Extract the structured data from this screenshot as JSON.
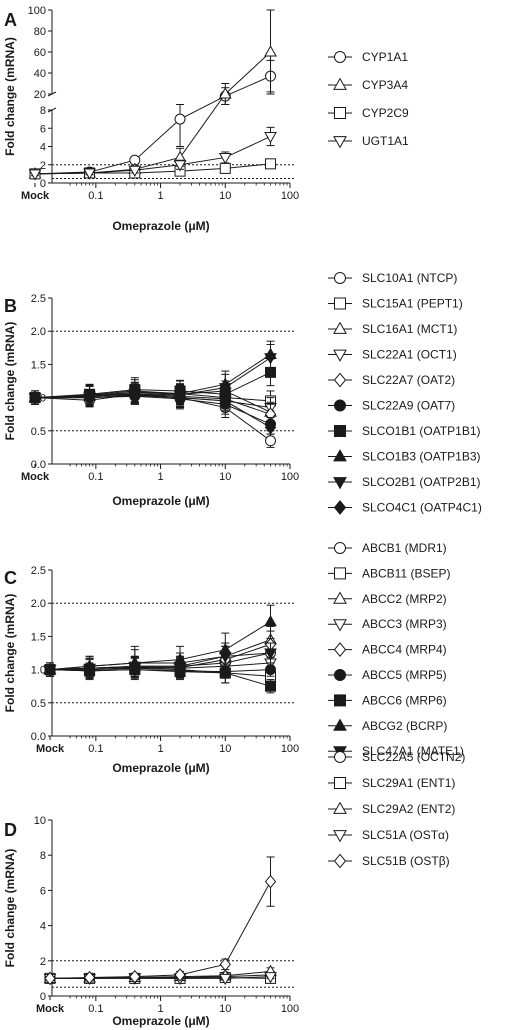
{
  "figure": {
    "panels": [
      {
        "letter": "A",
        "xlabel": "Omeprazole (μM)",
        "ylabel": "Fold change (mRNA)"
      },
      {
        "letter": "B",
        "xlabel": "Omeprazole (μM)",
        "ylabel": "Fold change (mRNA)"
      },
      {
        "letter": "C",
        "xlabel": "Omeprazole (μM)",
        "ylabel": "Fold change (mRNA)"
      },
      {
        "letter": "D",
        "xlabel": "Omeprazole (μM)",
        "ylabel": "Fold change (mRNA)"
      }
    ]
  },
  "chart_data": [
    {
      "type": "line",
      "panel": "A",
      "xlabel": "Omeprazole (μM)",
      "ylabel": "Fold change (mRNA)",
      "x_scale": "log",
      "x_tick_labels": [
        "Mock",
        "0.1",
        "1",
        "10",
        "100"
      ],
      "x": [
        "Mock",
        0.08,
        0.4,
        2,
        10,
        50
      ],
      "y_axis_broken": true,
      "y_lower_ticks": [
        0,
        2,
        4,
        6,
        8
      ],
      "y_upper_ticks": [
        20,
        40,
        60,
        80,
        100
      ],
      "reference_lines": [
        0.5,
        2
      ],
      "grid": false,
      "legend_position": "right",
      "series": [
        {
          "name": "CYP1A1",
          "marker": "circle-open",
          "values": [
            1,
            1.2,
            2.5,
            7,
            18,
            37
          ],
          "errors": [
            0.2,
            0.3,
            0.4,
            3,
            8,
            15
          ]
        },
        {
          "name": "CYP3A4",
          "marker": "triangle-up-open",
          "values": [
            1,
            1.1,
            1.5,
            2.8,
            20,
            60
          ],
          "errors": [
            0.2,
            0.2,
            0.4,
            1,
            10,
            40
          ]
        },
        {
          "name": "CYP2C9",
          "marker": "square-open",
          "values": [
            1,
            1.1,
            1.1,
            1.3,
            1.6,
            2.1
          ],
          "errors": [
            0.2,
            0.2,
            0.3,
            0.4,
            0.4,
            0.3
          ]
        },
        {
          "name": "UGT1A1",
          "marker": "triangle-down-open",
          "values": [
            1,
            1.1,
            1.4,
            2.0,
            2.8,
            5.1
          ],
          "errors": [
            0.2,
            0.2,
            0.3,
            0.5,
            0.6,
            1.0
          ]
        }
      ]
    },
    {
      "type": "line",
      "panel": "B",
      "xlabel": "Omeprazole (μM)",
      "ylabel": "Fold change (mRNA)",
      "x_scale": "log",
      "x_tick_labels": [
        "Mock",
        "0.1",
        "1",
        "10",
        "100"
      ],
      "x": [
        "Mock",
        0.08,
        0.4,
        2,
        10,
        50
      ],
      "ylim": [
        0,
        2.5
      ],
      "y_ticks": [
        "0.0",
        "0.5",
        "1.0",
        "1.5",
        "2.0",
        "2.5"
      ],
      "reference_lines": [
        0.5,
        2
      ],
      "grid": false,
      "legend_position": "right",
      "series": [
        {
          "name": "SLC10A1 (NTCP)",
          "marker": "circle-open",
          "values": [
            1,
            0.96,
            1.05,
            1.0,
            0.85,
            0.35
          ],
          "errors": [
            0.1,
            0.1,
            0.15,
            0.15,
            0.15,
            0.1
          ]
        },
        {
          "name": "SLC15A1 (PEPT1)",
          "marker": "square-open",
          "values": [
            1,
            1.04,
            1.1,
            1.06,
            1.0,
            0.95
          ],
          "errors": [
            0.1,
            0.15,
            0.2,
            0.2,
            0.2,
            0.15
          ]
        },
        {
          "name": "SLC16A1 (MCT1)",
          "marker": "triangle-up-open",
          "values": [
            1,
            1.02,
            1.08,
            1.05,
            1.1,
            0.78
          ],
          "errors": [
            0.1,
            0.15,
            0.15,
            0.15,
            0.15,
            0.15
          ]
        },
        {
          "name": "SLC22A1 (OCT1)",
          "marker": "triangle-down-open",
          "values": [
            1,
            1.0,
            1.04,
            1.0,
            0.95,
            0.85
          ],
          "errors": [
            0.1,
            0.1,
            0.1,
            0.15,
            0.15,
            0.15
          ]
        },
        {
          "name": "SLC22A7 (OAT2)",
          "marker": "diamond-open",
          "values": [
            1,
            1.02,
            1.05,
            1.02,
            0.98,
            0.75
          ],
          "errors": [
            0.1,
            0.1,
            0.15,
            0.15,
            0.15,
            0.15
          ]
        },
        {
          "name": "SLC22A9 (OAT7)",
          "marker": "circle-filled",
          "values": [
            1,
            1.0,
            1.02,
            0.98,
            0.9,
            0.6
          ],
          "errors": [
            0.1,
            0.1,
            0.1,
            0.15,
            0.15,
            0.1
          ]
        },
        {
          "name": "SLCO1B1 (OATP1B1)",
          "marker": "square-filled",
          "values": [
            1,
            1.05,
            1.12,
            1.1,
            1.05,
            1.38
          ],
          "errors": [
            0.1,
            0.15,
            0.15,
            0.15,
            0.15,
            0.2
          ]
        },
        {
          "name": "SLCO1B3 (OATP1B3)",
          "marker": "triangle-up-filled",
          "values": [
            1,
            1.03,
            1.08,
            1.06,
            1.2,
            1.65
          ],
          "errors": [
            0.1,
            0.15,
            0.15,
            0.15,
            0.2,
            0.2
          ]
        },
        {
          "name": "SLCO2B1 (OATP2B1)",
          "marker": "triangle-down-filled",
          "values": [
            1,
            1.02,
            1.06,
            1.04,
            1.15,
            1.6
          ],
          "errors": [
            0.1,
            0.15,
            0.15,
            0.15,
            0.2,
            0.2
          ]
        },
        {
          "name": "SLCO4C1 (OATP4C1)",
          "marker": "diamond-filled",
          "values": [
            1,
            1.0,
            1.03,
            1.0,
            0.95,
            0.55
          ],
          "errors": [
            0.1,
            0.1,
            0.1,
            0.15,
            0.15,
            0.1
          ]
        }
      ]
    },
    {
      "type": "line",
      "panel": "C",
      "xlabel": "Omeprazole (μM)",
      "ylabel": "Fold change (mRNA)",
      "x_scale": "log",
      "x_tick_labels": [
        "Mock",
        "0.1",
        "1",
        "10",
        "100"
      ],
      "x": [
        "Mock",
        0.08,
        0.4,
        2,
        10,
        50
      ],
      "ylim": [
        0,
        2.5
      ],
      "y_ticks": [
        "0.0",
        "0.5",
        "1.0",
        "1.5",
        "2.0",
        "2.5"
      ],
      "reference_lines": [
        0.5,
        2
      ],
      "grid": false,
      "legend_position": "right",
      "series": [
        {
          "name": "ABCB1 (MDR1)",
          "marker": "circle-open",
          "values": [
            1,
            1.02,
            1.05,
            1.05,
            1.1,
            1.25
          ],
          "errors": [
            0.1,
            0.15,
            0.15,
            0.15,
            0.15,
            0.15
          ]
        },
        {
          "name": "ABCB11 (BSEP)",
          "marker": "square-open",
          "values": [
            1,
            1.0,
            1.02,
            1.0,
            0.95,
            0.9
          ],
          "errors": [
            0.1,
            0.15,
            0.15,
            0.15,
            0.15,
            0.15
          ]
        },
        {
          "name": "ABCC2 (MRP2)",
          "marker": "triangle-up-open",
          "values": [
            1,
            1.05,
            1.1,
            1.1,
            1.2,
            1.45
          ],
          "errors": [
            0.1,
            0.15,
            0.2,
            0.15,
            0.2,
            0.2
          ]
        },
        {
          "name": "ABCC3 (MRP3)",
          "marker": "triangle-down-open",
          "values": [
            1,
            1.0,
            1.03,
            1.02,
            1.05,
            1.1
          ],
          "errors": [
            0.1,
            0.1,
            0.15,
            0.15,
            0.15,
            0.15
          ]
        },
        {
          "name": "ABCC4 (MRP4)",
          "marker": "diamond-open",
          "values": [
            1,
            1.02,
            1.04,
            1.03,
            1.15,
            1.38
          ],
          "errors": [
            0.1,
            0.15,
            0.15,
            0.15,
            0.2,
            0.2
          ]
        },
        {
          "name": "ABCC5 (MRP5)",
          "marker": "circle-filled",
          "values": [
            1,
            0.98,
            1.0,
            0.98,
            0.97,
            1.0
          ],
          "errors": [
            0.1,
            0.1,
            0.1,
            0.1,
            0.1,
            0.1
          ]
        },
        {
          "name": "ABCC6 (MRP6)",
          "marker": "square-filled",
          "values": [
            1,
            0.98,
            1.0,
            0.97,
            0.95,
            0.75
          ],
          "errors": [
            0.1,
            0.1,
            0.1,
            0.1,
            0.15,
            0.1
          ]
        },
        {
          "name": "ABCG2 (BCRP)",
          "marker": "triangle-up-filled",
          "values": [
            1,
            1.05,
            1.1,
            1.15,
            1.3,
            1.72
          ],
          "errors": [
            0.1,
            0.15,
            0.25,
            0.2,
            0.25,
            0.25
          ]
        },
        {
          "name": "SLC47A1 (MATE1)",
          "marker": "triangle-down-filled",
          "values": [
            1,
            1.02,
            1.05,
            1.05,
            1.2,
            1.25
          ],
          "errors": [
            0.1,
            0.15,
            0.15,
            0.15,
            0.15,
            0.15
          ]
        }
      ]
    },
    {
      "type": "line",
      "panel": "D",
      "xlabel": "Omeprazole (μM)",
      "ylabel": "Fold change (mRNA)",
      "x_scale": "log",
      "x_tick_labels": [
        "Mock",
        "0.1",
        "1",
        "10",
        "100"
      ],
      "x": [
        "Mock",
        0.08,
        0.4,
        2,
        10,
        50
      ],
      "ylim": [
        0,
        10
      ],
      "y_ticks": [
        "0",
        "2",
        "4",
        "6",
        "8",
        "10"
      ],
      "reference_lines": [
        0.5,
        2
      ],
      "grid": false,
      "legend_position": "right",
      "series": [
        {
          "name": "SLC22A5 (OCTN2)",
          "marker": "circle-open",
          "values": [
            1,
            1.0,
            1.05,
            1.05,
            1.1,
            1.2
          ],
          "errors": [
            0.1,
            0.15,
            0.15,
            0.15,
            0.15,
            0.15
          ]
        },
        {
          "name": "SLC29A1 (ENT1)",
          "marker": "square-open",
          "values": [
            1,
            1.0,
            1.0,
            1.0,
            1.05,
            1.0
          ],
          "errors": [
            0.1,
            0.1,
            0.1,
            0.1,
            0.15,
            0.15
          ]
        },
        {
          "name": "SLC29A2 (ENT2)",
          "marker": "triangle-up-open",
          "values": [
            1,
            1.02,
            1.05,
            1.1,
            1.15,
            1.4
          ],
          "errors": [
            0.1,
            0.15,
            0.15,
            0.15,
            0.15,
            0.2
          ]
        },
        {
          "name": "SLC51A (OSTα)",
          "marker": "triangle-down-open",
          "values": [
            1,
            1.0,
            1.02,
            1.0,
            1.0,
            1.1
          ],
          "errors": [
            0.1,
            0.1,
            0.1,
            0.1,
            0.1,
            0.1
          ]
        },
        {
          "name": "SLC51B (OSTβ)",
          "marker": "diamond-open",
          "values": [
            1,
            1.05,
            1.1,
            1.2,
            1.8,
            6.5
          ],
          "errors": [
            0.1,
            0.15,
            0.15,
            0.2,
            0.3,
            1.4
          ]
        }
      ]
    }
  ]
}
